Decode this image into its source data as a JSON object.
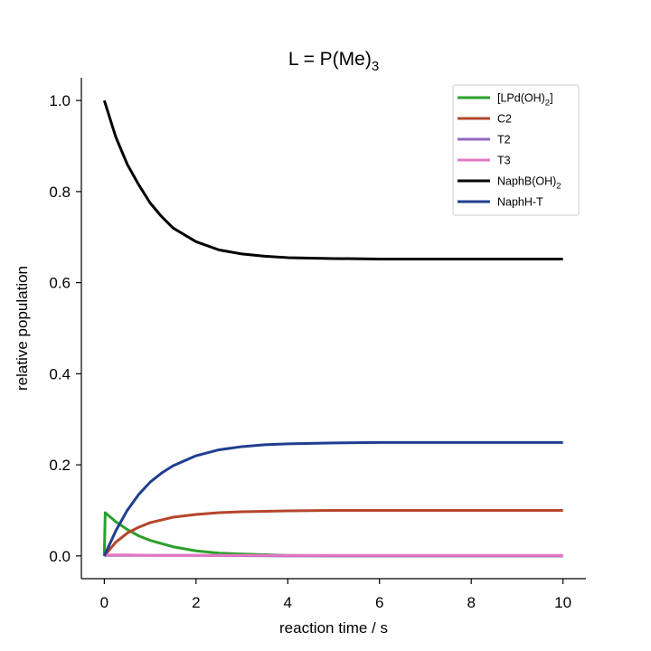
{
  "chart_data": {
    "type": "line",
    "title": "L = P(Me)",
    "title_subscript": "3",
    "xlabel": "reaction time / s",
    "ylabel": "relative population",
    "xlim": [
      -0.5,
      10.5
    ],
    "ylim": [
      -0.05,
      1.05
    ],
    "xticks": [
      0,
      2,
      4,
      6,
      8,
      10
    ],
    "yticks": [
      0.0,
      0.2,
      0.4,
      0.6,
      0.8,
      1.0
    ],
    "xtick_labels": [
      "0",
      "2",
      "4",
      "6",
      "8",
      "10"
    ],
    "ytick_labels": [
      "0.0",
      "0.2",
      "0.4",
      "0.6",
      "0.8",
      "1.0"
    ],
    "grid": false,
    "legend_position": "top-right",
    "series": [
      {
        "name": "[LPd(OH)",
        "name_subscript": "2",
        "name_suffix": "]",
        "color": "#2ca02c",
        "x": [
          0,
          0.02,
          0.1,
          0.25,
          0.5,
          0.75,
          1.0,
          1.5,
          2.0,
          2.5,
          3.0,
          4.0,
          5.0,
          6.0,
          8.0,
          10.0
        ],
        "y": [
          0.0,
          0.095,
          0.088,
          0.075,
          0.058,
          0.044,
          0.034,
          0.02,
          0.011,
          0.006,
          0.004,
          0.001,
          0.0,
          0.0,
          0.0,
          0.0
        ]
      },
      {
        "name": "C2",
        "color": "#b5452b",
        "x": [
          0,
          0.25,
          0.5,
          0.75,
          1.0,
          1.5,
          2.0,
          2.5,
          3.0,
          4.0,
          5.0,
          6.0,
          8.0,
          10.0
        ],
        "y": [
          0.0,
          0.03,
          0.05,
          0.063,
          0.073,
          0.085,
          0.091,
          0.095,
          0.097,
          0.099,
          0.1,
          0.1,
          0.1,
          0.1
        ]
      },
      {
        "name": "T2",
        "color": "#9467bd",
        "x": [
          0,
          0.5,
          1.0,
          2.0,
          4.0,
          6.0,
          8.0,
          10.0
        ],
        "y": [
          0.001,
          0.001,
          0.001,
          0.001,
          0.0,
          0.0,
          0.0,
          0.0
        ]
      },
      {
        "name": "T3",
        "color": "#e377c2",
        "x": [
          0,
          0.5,
          1.0,
          2.0,
          4.0,
          6.0,
          8.0,
          10.0
        ],
        "y": [
          0.002,
          0.002,
          0.001,
          0.001,
          0.001,
          0.001,
          0.001,
          0.001
        ]
      },
      {
        "name": "NaphB(OH)",
        "name_subscript": "2",
        "name_suffix": "",
        "color": "#000000",
        "x": [
          0,
          0.25,
          0.5,
          0.75,
          1.0,
          1.25,
          1.5,
          2.0,
          2.5,
          3.0,
          3.5,
          4.0,
          5.0,
          6.0,
          7.0,
          8.0,
          10.0
        ],
        "y": [
          1.0,
          0.92,
          0.86,
          0.815,
          0.775,
          0.745,
          0.72,
          0.69,
          0.672,
          0.663,
          0.658,
          0.655,
          0.653,
          0.652,
          0.652,
          0.652,
          0.652
        ]
      },
      {
        "name": "NaphH-T",
        "color": "#1f3e8f",
        "x": [
          0,
          0.25,
          0.5,
          0.75,
          1.0,
          1.25,
          1.5,
          2.0,
          2.5,
          3.0,
          3.5,
          4.0,
          5.0,
          6.0,
          8.0,
          10.0
        ],
        "y": [
          0.0,
          0.055,
          0.1,
          0.135,
          0.162,
          0.182,
          0.198,
          0.22,
          0.233,
          0.24,
          0.244,
          0.246,
          0.248,
          0.249,
          0.249,
          0.249
        ]
      }
    ]
  }
}
